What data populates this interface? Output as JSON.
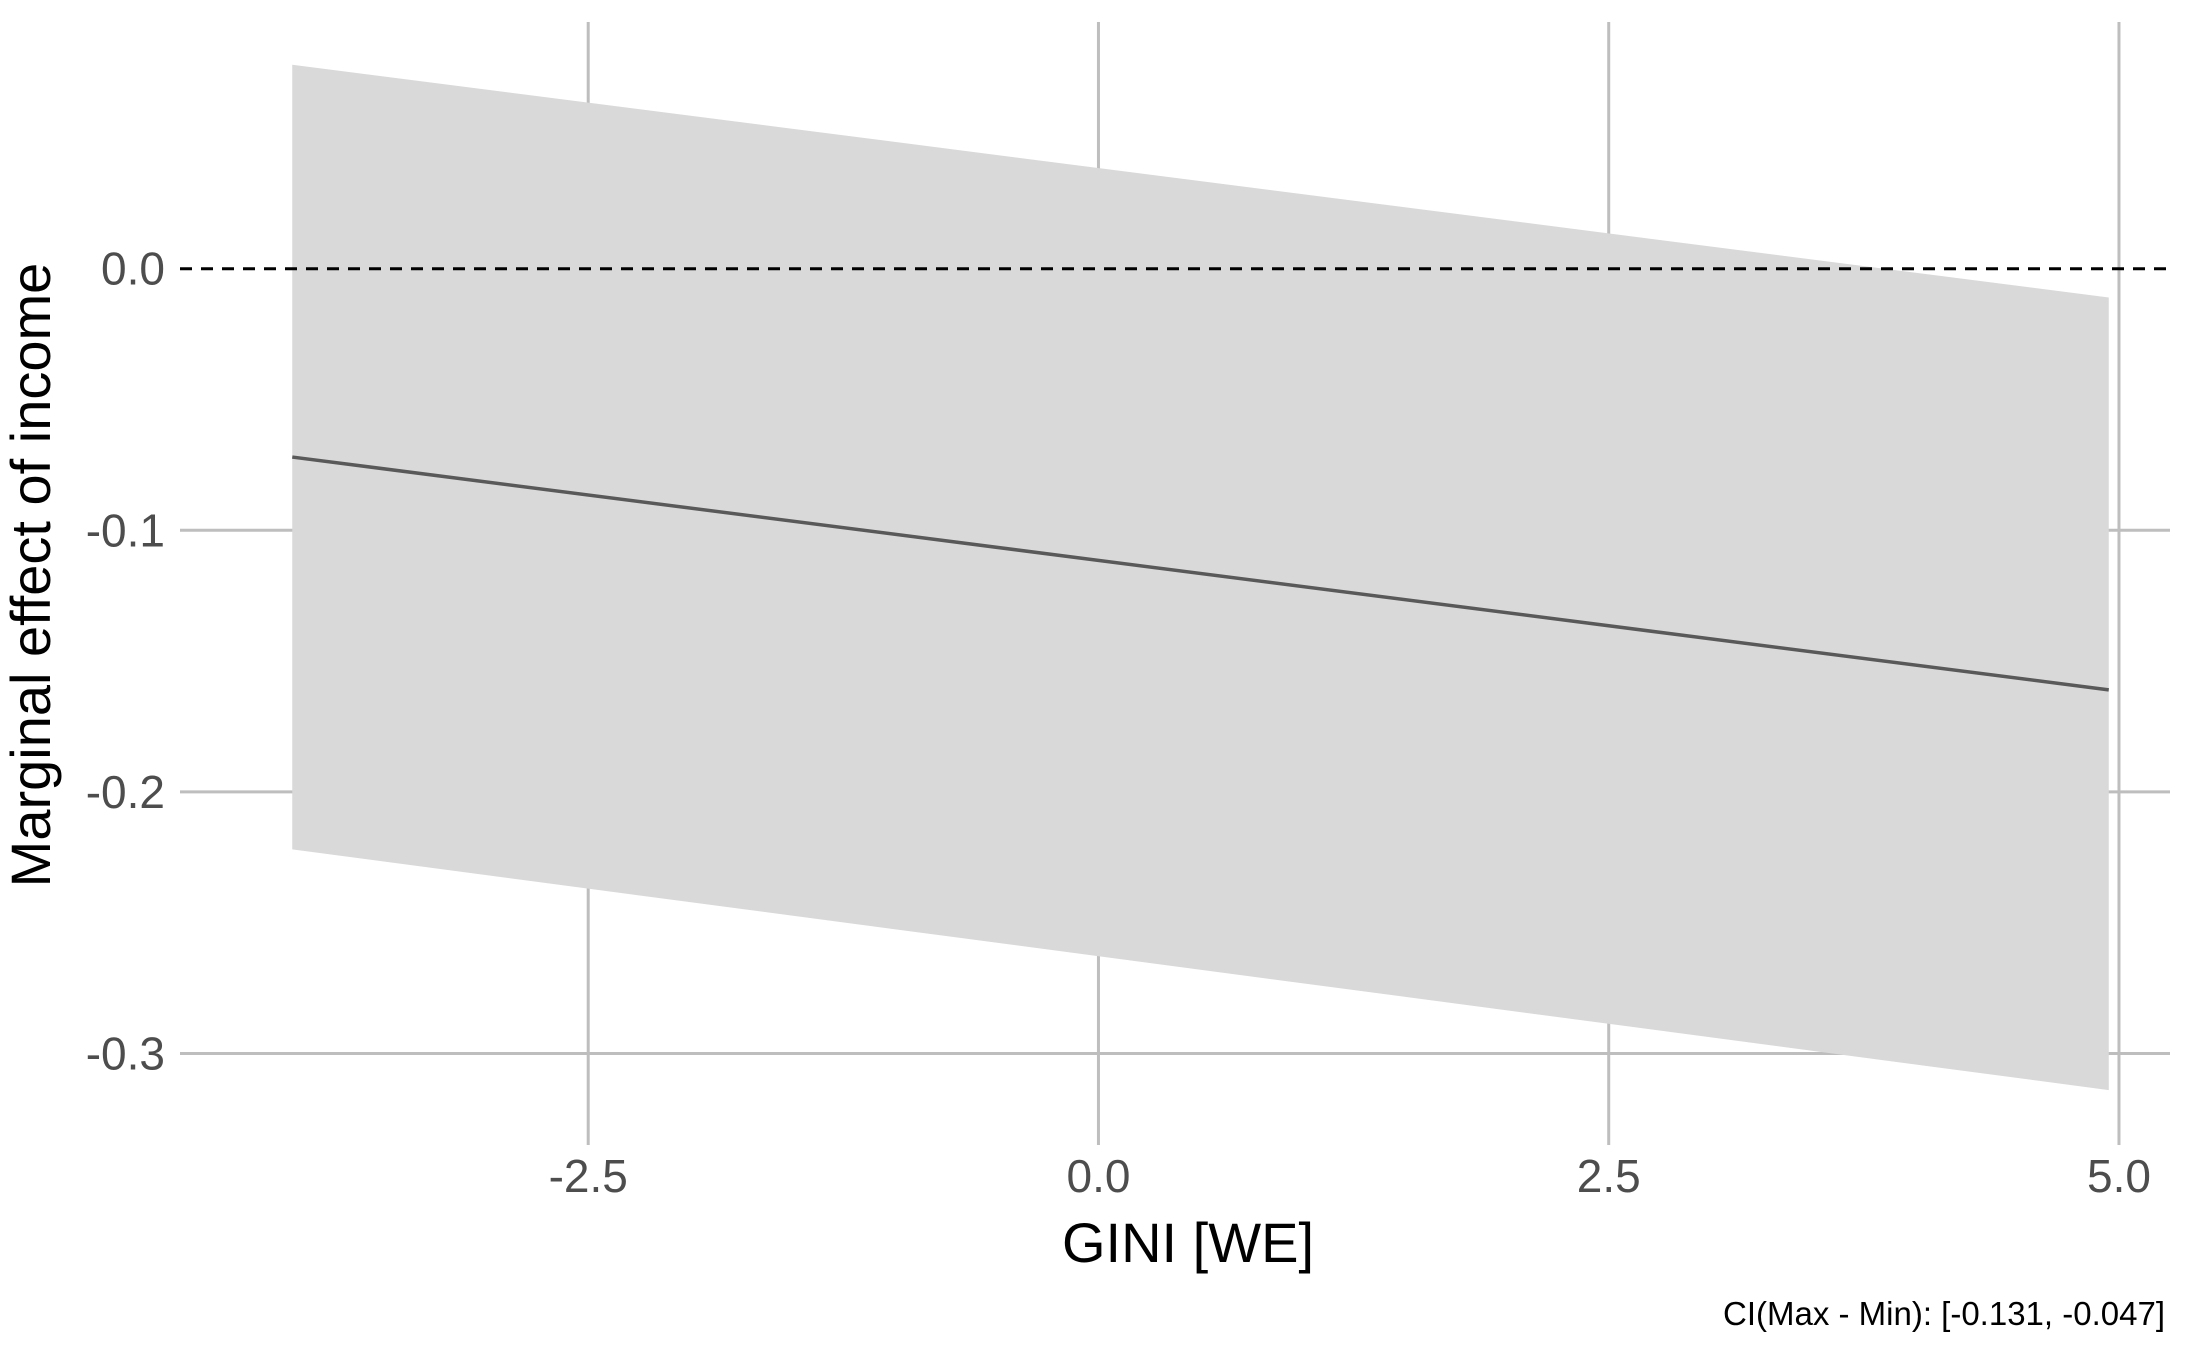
{
  "chart_data": {
    "type": "line",
    "title": "",
    "xlabel": "GINI [WE]",
    "ylabel": "Marginal effect of income",
    "caption": "CI(Max - Min): [-0.131, -0.047]",
    "xlim": [
      -4.5,
      5.25
    ],
    "ylim": [
      -0.335,
      0.097
    ],
    "x_ticks": [
      -2.5,
      0.0,
      2.5,
      5.0
    ],
    "x_tick_labels": [
      "-2.5",
      "0.0",
      "2.5",
      "5.0"
    ],
    "y_ticks": [
      -0.3,
      -0.2,
      -0.1,
      0.0
    ],
    "y_tick_labels": [
      "-0.3",
      "-0.2",
      "-0.1",
      "0.0"
    ],
    "grid": true,
    "reference_line": {
      "y": 0.0,
      "style": "dashed"
    },
    "series": [
      {
        "x": [
          -3.95,
          4.95
        ],
        "y": [
          -0.072,
          -0.161
        ],
        "ci_lower": [
          -0.222,
          -0.314
        ],
        "ci_upper": [
          0.078,
          -0.011
        ]
      }
    ],
    "colors": {
      "line": "#595959",
      "ribbon": "#d9d9d9",
      "grid": "#bebebe",
      "reference": "#000000"
    }
  }
}
